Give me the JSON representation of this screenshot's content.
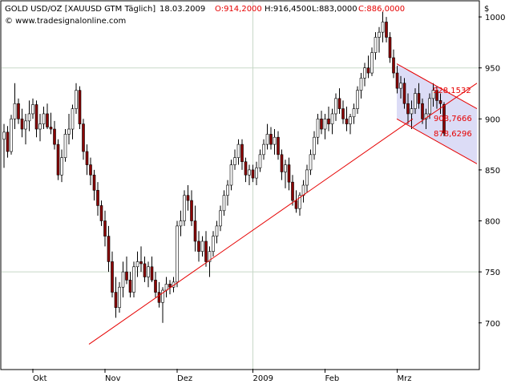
{
  "header": {
    "symbol_text": "GOLD USD/OZ [XAUUSD GTM  Täglich]",
    "date_text": "18.03.2009",
    "open_text": "O:914,2000",
    "high_text": "H:916,4500",
    "low_text": "L:883,0000",
    "close_text": "C:886,0000",
    "copyright_text": "© www.tradesignalonline.com",
    "currency_label": "$"
  },
  "colors": {
    "up_candle": "#ffffff",
    "down_candle": "#8b0000",
    "candle_outline": "#000000",
    "trendline": "#e60000",
    "channel_fill": "#dcdcf6",
    "grid": "#c8d8c8",
    "header_red": "#e60000"
  },
  "chart_data": {
    "type": "candlestick",
    "instrument": "GOLD USD/OZ",
    "y_axis": {
      "ticks": [
        700,
        750,
        800,
        850,
        900,
        950,
        1000
      ],
      "range": [
        655,
        1015
      ],
      "side": "right"
    },
    "x_axis": {
      "month_labels": [
        "Okt",
        "Nov",
        "Dez",
        "2009",
        "Feb",
        "Mrz"
      ]
    },
    "grid": true,
    "last_bar": {
      "date": "18.03.2009",
      "open": 914.2,
      "high": 916.45,
      "low": 883.0,
      "close": 886.0
    },
    "ohlc_approx": [
      [
        880,
        895,
        852,
        887
      ],
      [
        887,
        893,
        862,
        868
      ],
      [
        868,
        904,
        865,
        900
      ],
      [
        900,
        935,
        890,
        915
      ],
      [
        915,
        920,
        895,
        900
      ],
      [
        900,
        910,
        882,
        890
      ],
      [
        890,
        905,
        875,
        898
      ],
      [
        898,
        918,
        888,
        905
      ],
      [
        905,
        920,
        900,
        914
      ],
      [
        914,
        918,
        882,
        890
      ],
      [
        890,
        905,
        878,
        895
      ],
      [
        895,
        912,
        890,
        905
      ],
      [
        905,
        915,
        890,
        892
      ],
      [
        892,
        906,
        885,
        890
      ],
      [
        890,
        898,
        870,
        875
      ],
      [
        875,
        880,
        840,
        845
      ],
      [
        845,
        870,
        838,
        862
      ],
      [
        862,
        890,
        858,
        885
      ],
      [
        885,
        905,
        875,
        890
      ],
      [
        890,
        914,
        880,
        910
      ],
      [
        910,
        935,
        905,
        928
      ],
      [
        928,
        932,
        890,
        895
      ],
      [
        895,
        900,
        860,
        868
      ],
      [
        868,
        875,
        845,
        855
      ],
      [
        855,
        862,
        835,
        845
      ],
      [
        845,
        850,
        820,
        830
      ],
      [
        830,
        838,
        805,
        815
      ],
      [
        815,
        820,
        795,
        800
      ],
      [
        800,
        810,
        775,
        785
      ],
      [
        785,
        795,
        750,
        760
      ],
      [
        760,
        770,
        725,
        730
      ],
      [
        730,
        745,
        705,
        715
      ],
      [
        715,
        740,
        710,
        735
      ],
      [
        735,
        760,
        725,
        750
      ],
      [
        750,
        765,
        738,
        742
      ],
      [
        742,
        750,
        725,
        730
      ],
      [
        730,
        760,
        725,
        755
      ],
      [
        755,
        770,
        745,
        760
      ],
      [
        760,
        775,
        750,
        758
      ],
      [
        758,
        765,
        740,
        745
      ],
      [
        745,
        760,
        735,
        755
      ],
      [
        755,
        765,
        740,
        742
      ],
      [
        742,
        750,
        725,
        730
      ],
      [
        730,
        740,
        715,
        720
      ],
      [
        720,
        735,
        700,
        732
      ],
      [
        732,
        745,
        725,
        738
      ],
      [
        738,
        742,
        728,
        735
      ],
      [
        735,
        745,
        730,
        740
      ],
      [
        740,
        800,
        735,
        795
      ],
      [
        795,
        810,
        785,
        800
      ],
      [
        800,
        830,
        795,
        825
      ],
      [
        825,
        835,
        810,
        820
      ],
      [
        820,
        830,
        795,
        800
      ],
      [
        800,
        815,
        770,
        780
      ],
      [
        780,
        790,
        760,
        770
      ],
      [
        770,
        785,
        765,
        780
      ],
      [
        780,
        790,
        755,
        760
      ],
      [
        760,
        775,
        745,
        770
      ],
      [
        770,
        790,
        765,
        785
      ],
      [
        785,
        800,
        778,
        795
      ],
      [
        795,
        815,
        790,
        810
      ],
      [
        810,
        830,
        805,
        825
      ],
      [
        825,
        840,
        815,
        835
      ],
      [
        835,
        860,
        830,
        855
      ],
      [
        855,
        870,
        850,
        862
      ],
      [
        862,
        880,
        855,
        875
      ],
      [
        875,
        880,
        850,
        858
      ],
      [
        858,
        862,
        838,
        845
      ],
      [
        845,
        855,
        835,
        850
      ],
      [
        850,
        855,
        838,
        842
      ],
      [
        842,
        858,
        835,
        852
      ],
      [
        852,
        870,
        848,
        865
      ],
      [
        865,
        880,
        860,
        875
      ],
      [
        875,
        895,
        870,
        885
      ],
      [
        885,
        892,
        870,
        875
      ],
      [
        875,
        890,
        865,
        882
      ],
      [
        882,
        888,
        860,
        865
      ],
      [
        865,
        870,
        840,
        848
      ],
      [
        848,
        860,
        832,
        855
      ],
      [
        855,
        862,
        830,
        838
      ],
      [
        838,
        845,
        815,
        820
      ],
      [
        820,
        830,
        808,
        812
      ],
      [
        812,
        828,
        805,
        825
      ],
      [
        825,
        840,
        818,
        835
      ],
      [
        835,
        855,
        828,
        850
      ],
      [
        850,
        870,
        845,
        865
      ],
      [
        865,
        888,
        860,
        882
      ],
      [
        882,
        905,
        875,
        900
      ],
      [
        900,
        908,
        885,
        890
      ],
      [
        890,
        905,
        880,
        900
      ],
      [
        900,
        912,
        888,
        895
      ],
      [
        895,
        910,
        885,
        905
      ],
      [
        905,
        925,
        898,
        920
      ],
      [
        920,
        930,
        905,
        910
      ],
      [
        910,
        918,
        895,
        900
      ],
      [
        900,
        912,
        888,
        895
      ],
      [
        895,
        905,
        885,
        902
      ],
      [
        902,
        915,
        895,
        910
      ],
      [
        910,
        932,
        905,
        928
      ],
      [
        928,
        945,
        920,
        940
      ],
      [
        940,
        955,
        932,
        950
      ],
      [
        950,
        962,
        940,
        945
      ],
      [
        945,
        970,
        942,
        965
      ],
      [
        965,
        985,
        958,
        980
      ],
      [
        980,
        990,
        965,
        985
      ],
      [
        985,
        1005,
        975,
        995
      ],
      [
        995,
        1000,
        975,
        980
      ],
      [
        980,
        985,
        955,
        960
      ],
      [
        960,
        968,
        940,
        945
      ],
      [
        945,
        952,
        925,
        930
      ],
      [
        930,
        942,
        920,
        935
      ],
      [
        935,
        940,
        910,
        915
      ],
      [
        915,
        925,
        895,
        905
      ],
      [
        905,
        918,
        890,
        910
      ],
      [
        910,
        930,
        905,
        925
      ],
      [
        925,
        935,
        910,
        915
      ],
      [
        915,
        920,
        895,
        900
      ],
      [
        900,
        910,
        890,
        905
      ],
      [
        905,
        925,
        900,
        920
      ],
      [
        920,
        935,
        912,
        928
      ],
      [
        928,
        932,
        910,
        918
      ],
      [
        918,
        925,
        905,
        915
      ],
      [
        914.2,
        916.45,
        883.0,
        886.0
      ]
    ],
    "support_trendline": {
      "from_value": 679,
      "to_value": 900
    },
    "channel": {
      "labels": [
        "928,1532",
        "908,7666",
        "878,6296"
      ],
      "upper_start": 954,
      "upper_end": 910,
      "lower_start": 900,
      "lower_end": 856,
      "middle_start": 892,
      "middle_end": 935
    }
  }
}
